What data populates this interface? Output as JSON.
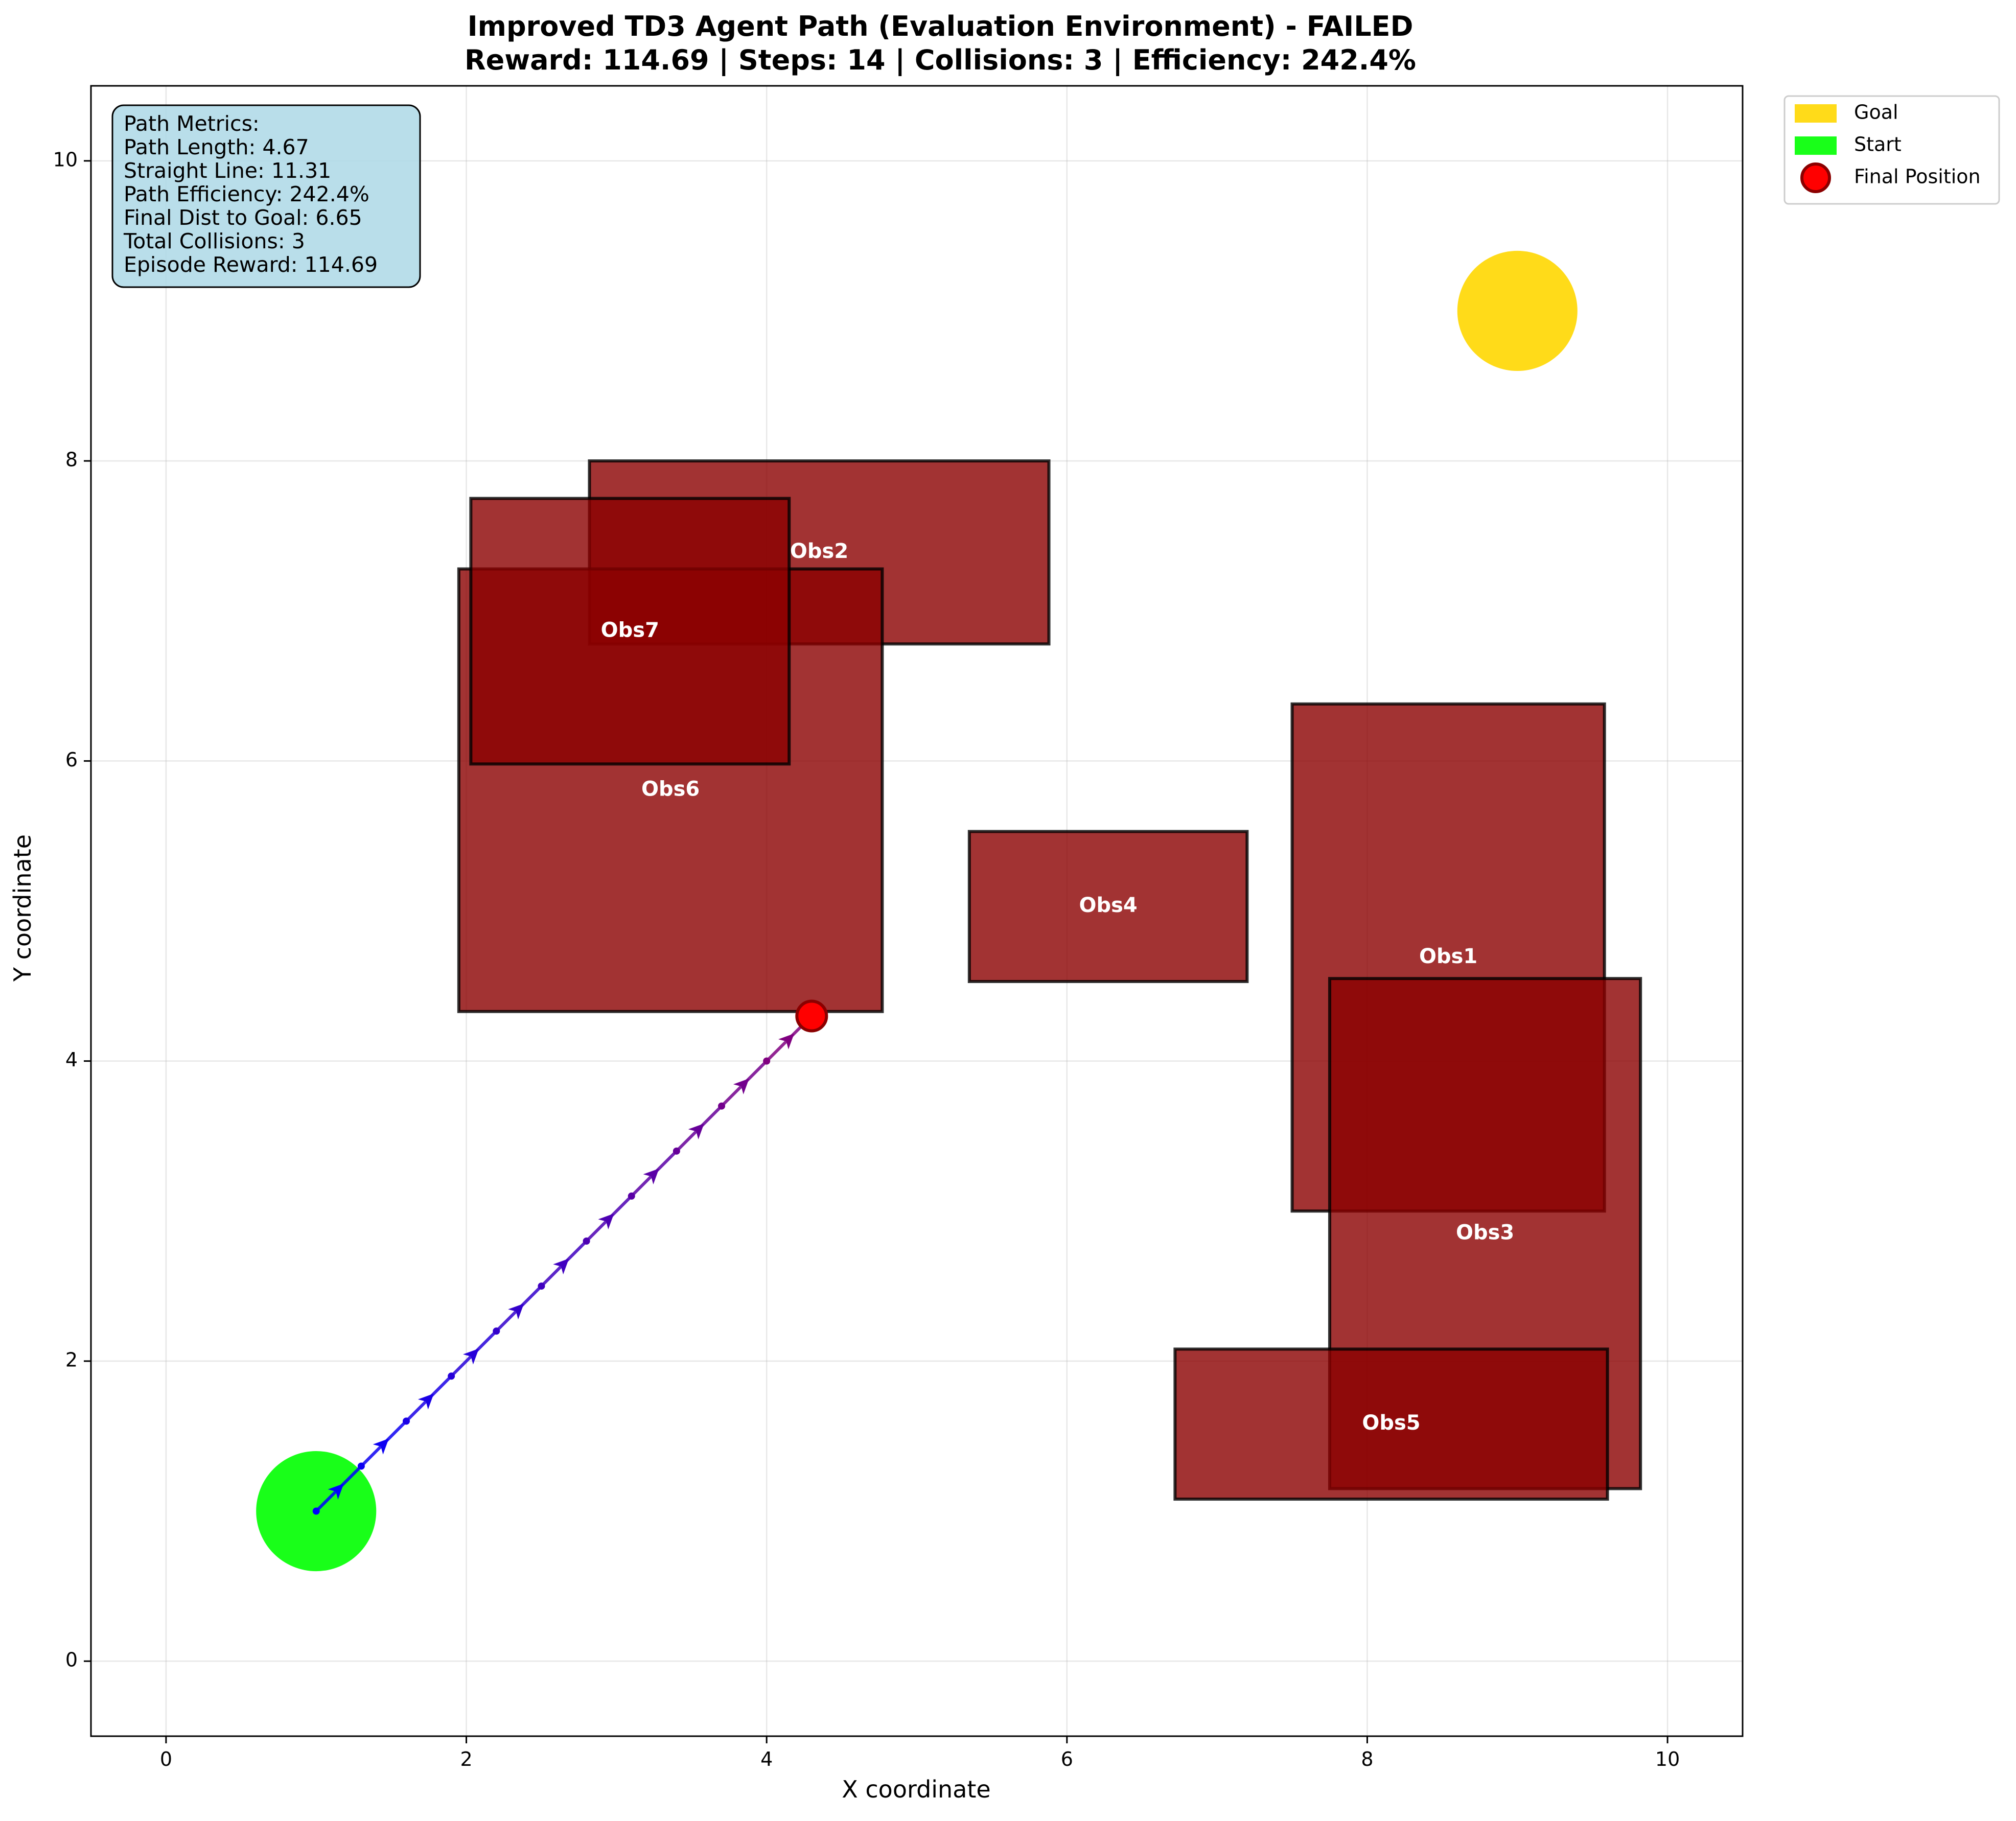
{
  "chart_data": {
    "type": "scatter",
    "title": "Improved TD3 Agent Path (Evaluation Environment) - FAILED",
    "subtitle": "Reward: 114.69 | Steps: 14 | Collisions: 3 | Efficiency: 242.4%",
    "xlabel": "X coordinate",
    "ylabel": "Y coordinate",
    "xlim": [
      -0.5,
      10.5
    ],
    "ylim": [
      -0.5,
      10.5
    ],
    "x_ticks": [
      0,
      2,
      4,
      6,
      8,
      10
    ],
    "y_ticks": [
      0,
      2,
      4,
      6,
      8,
      10
    ],
    "grid": true,
    "legend_position": "outside-top-right",
    "legend": [
      {
        "label": "Goal",
        "color": "#FFD700",
        "marker": "patch"
      },
      {
        "label": "Start",
        "color": "#00FF00",
        "marker": "patch"
      },
      {
        "label": "Final Position",
        "color": "#FF0000",
        "marker": "circle"
      }
    ],
    "goal": {
      "x": 9.0,
      "y": 9.0,
      "radius": 0.4,
      "color": "#FFD700"
    },
    "start": {
      "x": 1.0,
      "y": 1.0,
      "radius": 0.4,
      "color": "#00FF00"
    },
    "final_position": {
      "x": 4.3,
      "y": 4.3,
      "color": "#FF0000"
    },
    "obstacles": [
      {
        "name": "Obs1",
        "x0": 7.5,
        "y0": 3.0,
        "x1": 9.58,
        "y1": 6.38
      },
      {
        "name": "Obs2",
        "x0": 2.82,
        "y0": 6.78,
        "x1": 5.88,
        "y1": 8.0
      },
      {
        "name": "Obs3",
        "x0": 7.75,
        "y0": 1.15,
        "x1": 9.82,
        "y1": 4.55
      },
      {
        "name": "Obs4",
        "x0": 5.35,
        "y0": 4.53,
        "x1": 7.2,
        "y1": 5.53
      },
      {
        "name": "Obs5",
        "x0": 6.72,
        "y0": 1.08,
        "x1": 9.6,
        "y1": 2.08
      },
      {
        "name": "Obs6",
        "x0": 1.95,
        "y0": 4.33,
        "x1": 4.77,
        "y1": 7.28
      },
      {
        "name": "Obs7",
        "x0": 2.03,
        "y0": 5.98,
        "x1": 4.15,
        "y1": 7.75
      }
    ],
    "obstacle_color": "#8B0000",
    "path": {
      "x": [
        1.0,
        1.3,
        1.6,
        1.9,
        2.2,
        2.5,
        2.8,
        3.1,
        3.4,
        3.7,
        4.0,
        4.3
      ],
      "y": [
        1.0,
        1.3,
        1.6,
        1.9,
        2.2,
        2.5,
        2.8,
        3.1,
        3.4,
        3.7,
        4.0,
        4.3
      ],
      "color_start": "#0000FF",
      "color_end": "#800080"
    },
    "annotation": {
      "lines": [
        "Path Metrics:",
        "Path Length: 4.67",
        "Straight Line: 11.31",
        "Path Efficiency: 242.4%",
        "Final Dist to Goal: 6.65",
        "Total Collisions: 3",
        "Episode Reward: 114.69"
      ],
      "background": "#ADD8E6"
    }
  }
}
